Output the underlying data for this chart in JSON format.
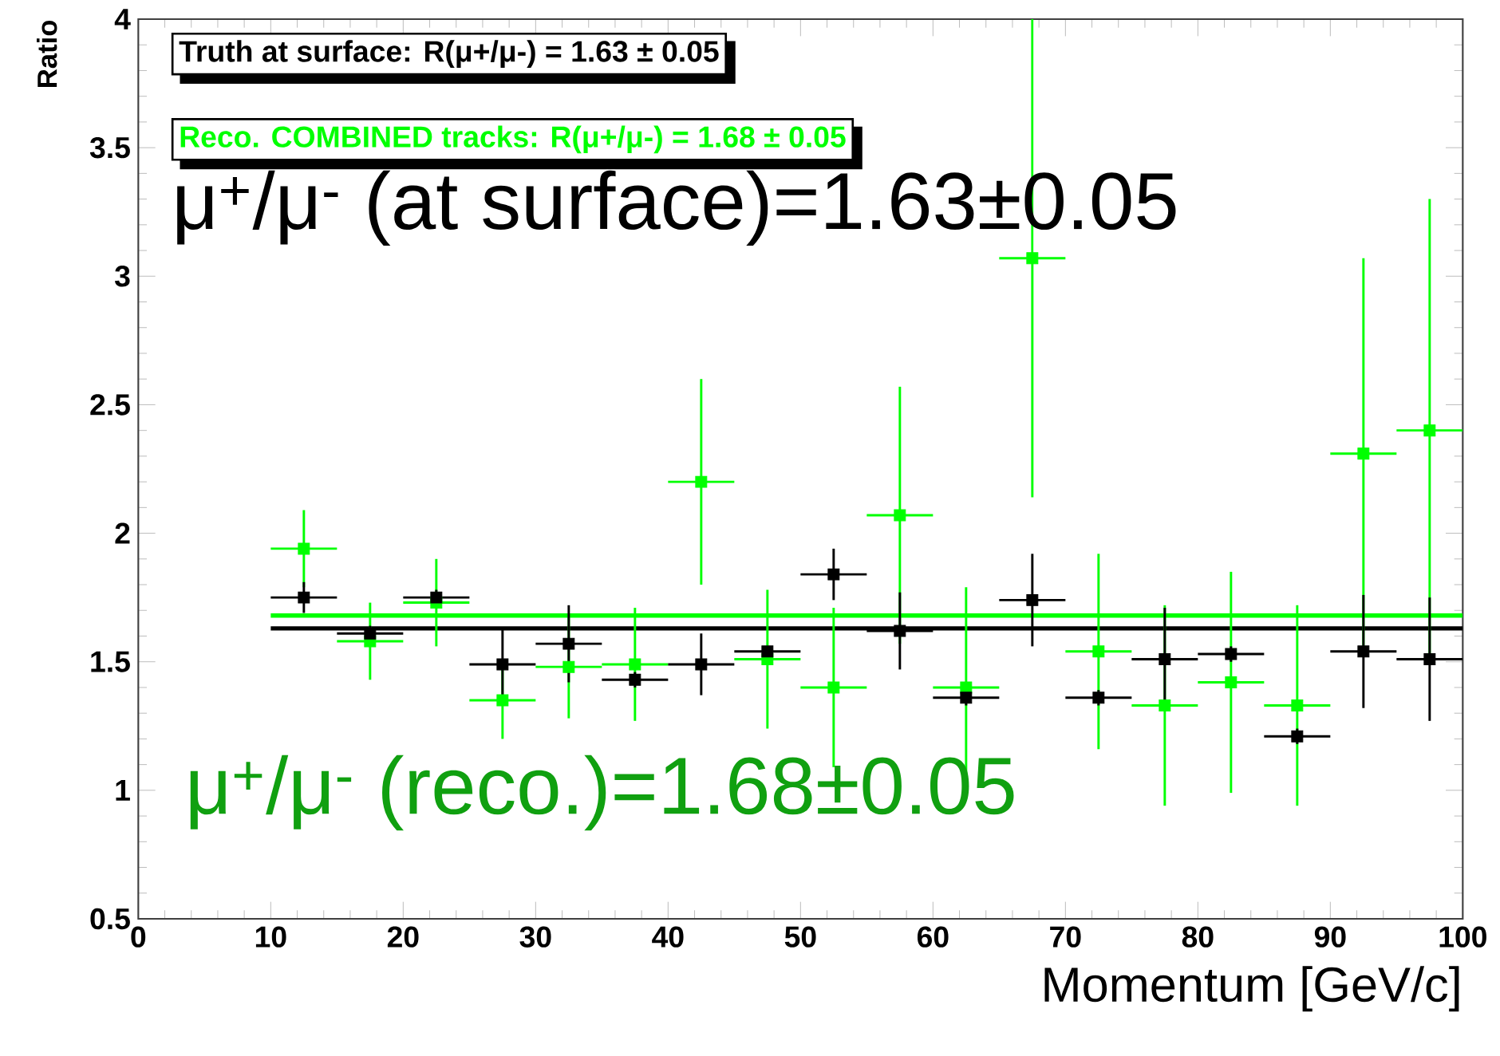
{
  "chart_data": {
    "type": "scatter",
    "xlabel": "Momentum [GeV/c]",
    "ylabel": "Ratio",
    "xlim": [
      0,
      100
    ],
    "ylim": [
      0.5,
      4
    ],
    "xticks": [
      0,
      10,
      20,
      30,
      40,
      50,
      60,
      70,
      80,
      90,
      100
    ],
    "yticks": [
      0.5,
      1,
      1.5,
      2,
      2.5,
      3,
      3.5,
      4
    ],
    "legend": "top left",
    "series": [
      {
        "name": "Truth at surface: R(μ+/μ-) = 1.63 ± 0.05",
        "color": "#000000",
        "marker": "square",
        "x": [
          12.5,
          17.5,
          22.5,
          27.5,
          32.5,
          37.5,
          42.5,
          47.5,
          52.5,
          57.5,
          62.5,
          67.5,
          72.5,
          77.5,
          82.5,
          87.5,
          92.5,
          97.5
        ],
        "values": [
          1.75,
          1.61,
          1.75,
          1.49,
          1.57,
          1.43,
          1.49,
          1.54,
          1.84,
          1.62,
          1.36,
          1.74,
          1.36,
          1.51,
          1.53,
          1.21,
          1.54,
          1.51
        ],
        "errors": [
          0.06,
          0.03,
          0.03,
          0.14,
          0.15,
          0.03,
          0.12,
          null,
          0.1,
          0.15,
          0.03,
          0.18,
          0.03,
          0.2,
          0.03,
          0.03,
          0.22,
          0.24
        ],
        "xerrors": [
          2.5,
          2.5,
          2.5,
          2.5,
          2.5,
          2.5,
          2.5,
          2.5,
          2.5,
          2.5,
          2.5,
          2.5,
          2.5,
          2.5,
          2.5,
          2.5,
          2.5,
          2.5
        ]
      },
      {
        "name": "Reco. COMBINED tracks: R(μ+/μ-) = 1.68 ± 0.05",
        "color": "#00ff00",
        "marker": "square",
        "x": [
          12.5,
          17.5,
          22.5,
          27.5,
          32.5,
          37.5,
          42.5,
          47.5,
          52.5,
          57.5,
          62.5,
          67.5,
          72.5,
          77.5,
          82.5,
          87.5,
          92.5,
          97.5
        ],
        "values": [
          1.94,
          1.58,
          1.73,
          1.35,
          1.48,
          1.49,
          2.2,
          1.51,
          1.4,
          2.07,
          1.4,
          3.07,
          1.54,
          1.33,
          1.42,
          1.33,
          2.31,
          2.4
        ],
        "errors": [
          0.15,
          0.15,
          0.17,
          0.15,
          0.2,
          0.22,
          0.4,
          0.27,
          0.31,
          0.5,
          0.39,
          0.93,
          0.38,
          0.39,
          0.43,
          0.39,
          0.76,
          0.9
        ],
        "xerrors": [
          2.5,
          2.5,
          2.5,
          2.5,
          2.5,
          2.5,
          2.5,
          2.5,
          2.5,
          2.5,
          2.5,
          2.5,
          2.5,
          2.5,
          2.5,
          2.5,
          2.5,
          2.5
        ]
      },
      {
        "type": "line",
        "marker": "none",
        "color": "#000000",
        "x": [
          10,
          100
        ],
        "values": [
          1.63,
          1.63
        ]
      },
      {
        "type": "line",
        "marker": "none",
        "color": "#00ff00",
        "x": [
          10,
          100
        ],
        "values": [
          1.68,
          1.68
        ]
      }
    ],
    "annotations": [
      "μ$^{+}$/μ$^{-}$ (at surface)=1.63±0.05",
      "μ$^{+}$/μ$^{-}$ (reco.)=1.68±0.05"
    ]
  }
}
